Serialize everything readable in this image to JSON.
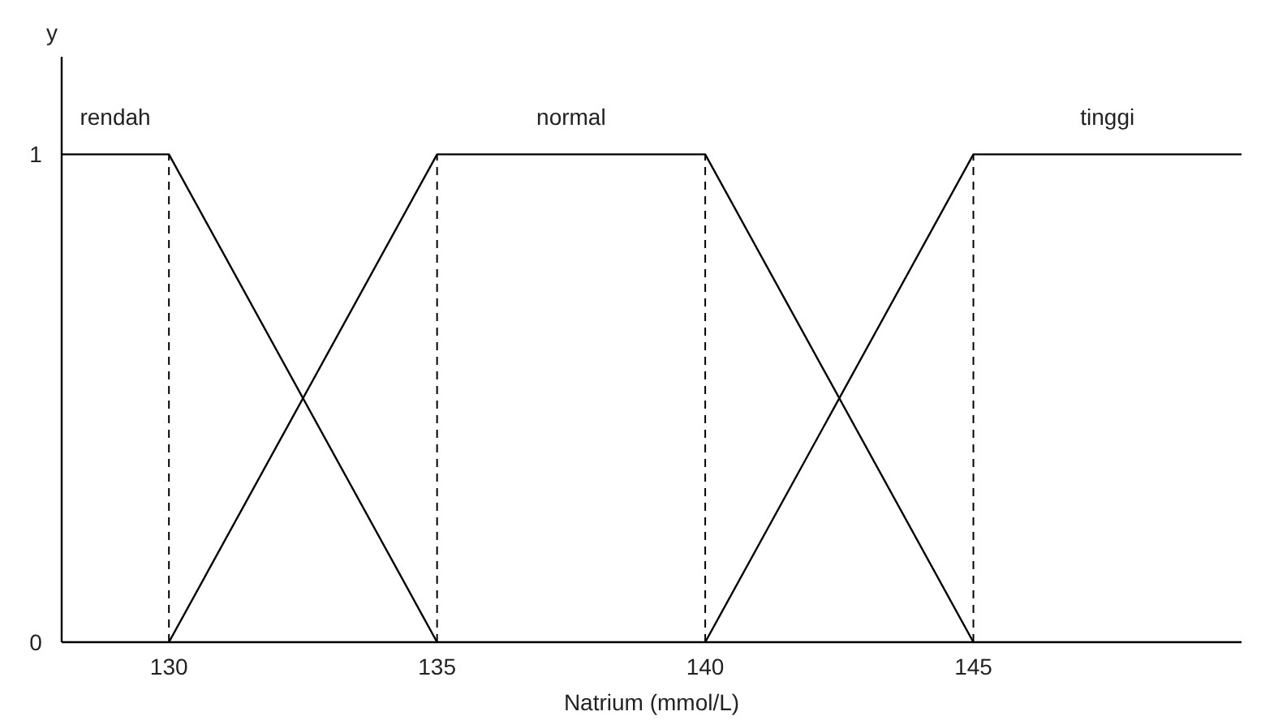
{
  "chart_data": {
    "type": "line",
    "xlabel": "Natrium (mmol/L)",
    "ylabel": "y",
    "xlim": [
      128,
      150
    ],
    "ylim": [
      0,
      1.2
    ],
    "xticks": [
      130,
      135,
      140,
      145
    ],
    "yticks": [
      0,
      1
    ],
    "series": [
      {
        "name": "rendah",
        "color": "#000000",
        "x": [
          128,
          130,
          135
        ],
        "values": [
          1,
          1,
          0
        ]
      },
      {
        "name": "normal",
        "color": "#000000",
        "x": [
          130,
          135,
          140,
          145
        ],
        "values": [
          0,
          1,
          1,
          0
        ]
      },
      {
        "name": "tinggi",
        "color": "#000000",
        "x": [
          140,
          145,
          150
        ],
        "values": [
          0,
          1,
          1
        ]
      }
    ],
    "ref_lines": [
      {
        "axis": "x",
        "value": 130,
        "color": "#000000",
        "line_style": "dashed"
      },
      {
        "axis": "x",
        "value": 135,
        "color": "#000000",
        "line_style": "dashed"
      },
      {
        "axis": "x",
        "value": 140,
        "color": "#000000",
        "line_style": "dashed"
      },
      {
        "axis": "x",
        "value": 145,
        "color": "#000000",
        "line_style": "dashed"
      }
    ],
    "grid": false,
    "marker": "none",
    "line_style": "solid"
  }
}
